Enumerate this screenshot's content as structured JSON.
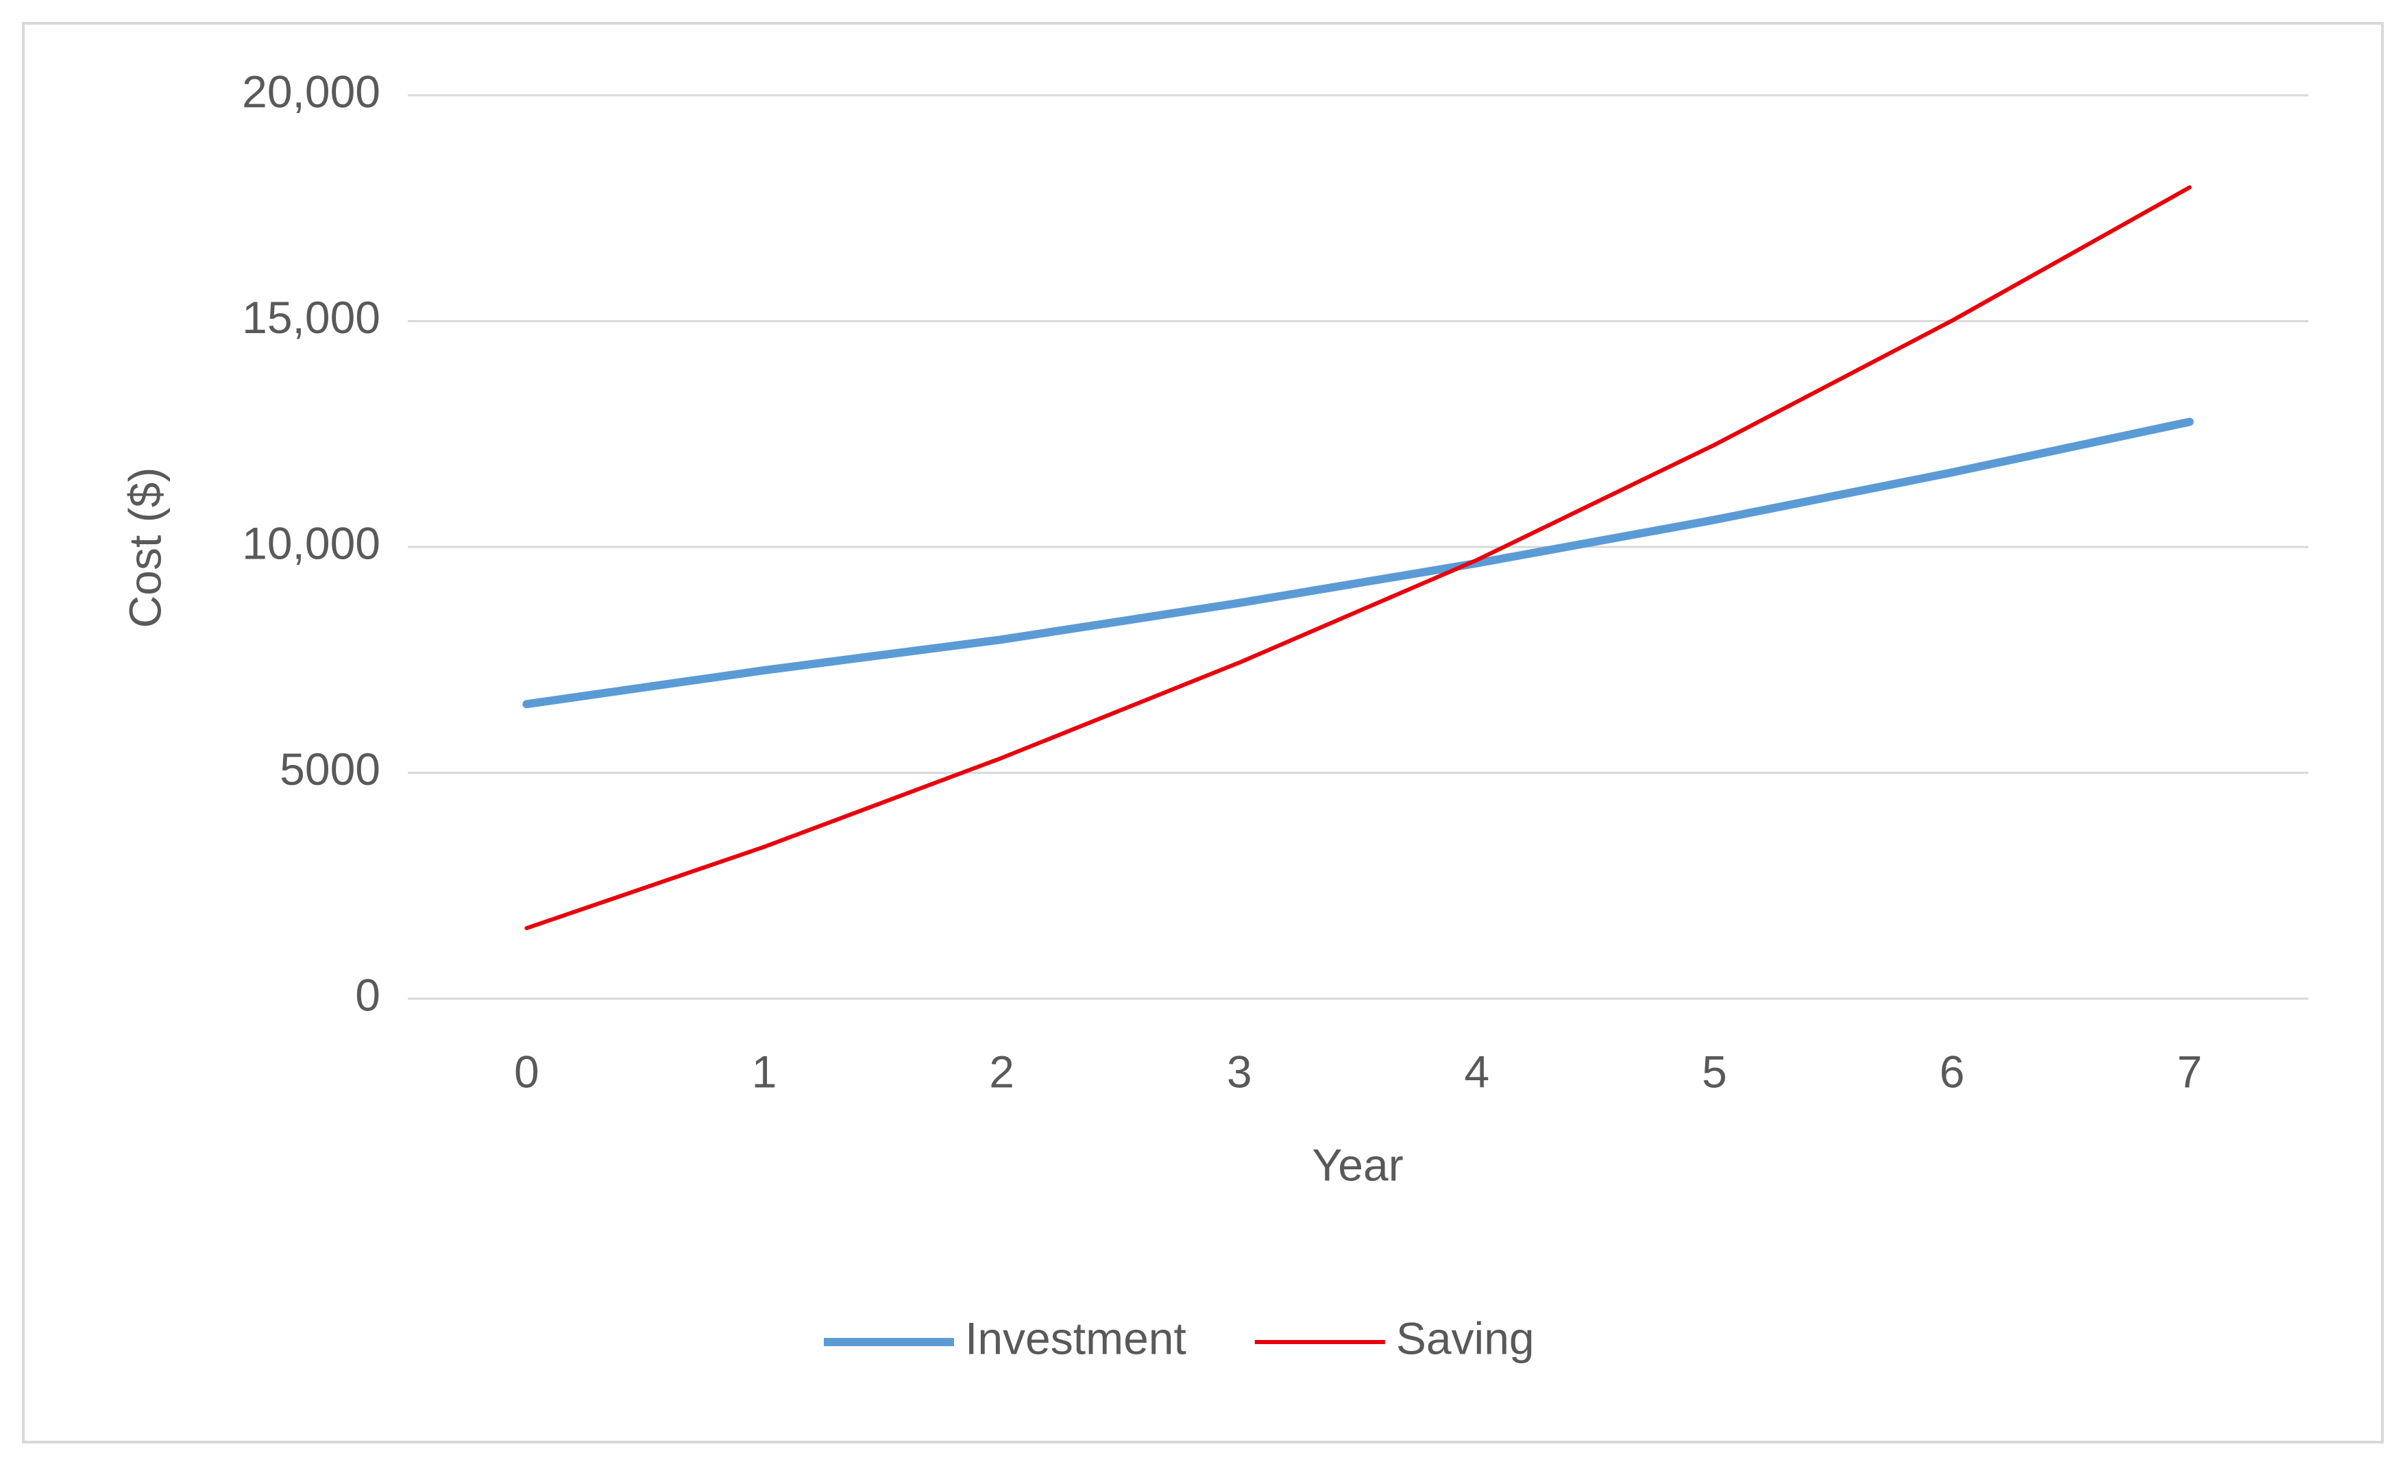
{
  "chart_data": {
    "type": "line",
    "x_label": "Year",
    "y_label": "Cost ($)",
    "categories": [
      0,
      1,
      2,
      3,
      4,
      5,
      6,
      7
    ],
    "series": [
      {
        "name": "Investment",
        "color": "#5b9bd5",
        "values": [
          6520,
          7270,
          7950,
          8760,
          9640,
          10600,
          11650,
          12770
        ]
      },
      {
        "name": "Saving",
        "color": "#e8000b",
        "values": [
          1560,
          3360,
          5330,
          7440,
          9710,
          12260,
          15010,
          17960
        ]
      }
    ],
    "ylim": [
      0,
      20000
    ],
    "yticks": [
      0,
      5000,
      {
        "value": 10000,
        "label": "10,000"
      },
      {
        "value": 15000,
        "label": "15,000"
      },
      {
        "value": 20000,
        "label": "20,000"
      }
    ],
    "grid": true,
    "legend": "bottom"
  }
}
